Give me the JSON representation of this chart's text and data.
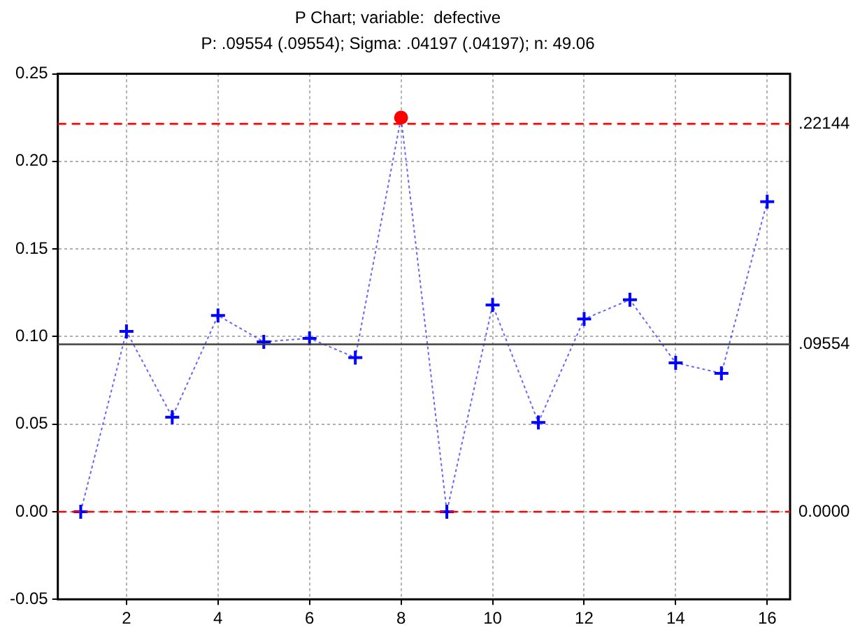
{
  "chart_data": {
    "type": "line",
    "title": "P Chart; variable:  defective",
    "subtitle": "P: .09554 (.09554); Sigma: .04197 (.04197); n: 49.06",
    "x": [
      1,
      2,
      3,
      4,
      5,
      6,
      7,
      8,
      9,
      10,
      11,
      12,
      13,
      14,
      15,
      16
    ],
    "series": [
      {
        "color": "#0000ff",
        "colors": [
          "#0000ff",
          "#0000ff",
          "#0000ff",
          "#0000ff",
          "#0000ff",
          "#0000ff",
          "#0000ff",
          "#ff0000",
          "#0000ff",
          "#0000ff",
          "#0000ff",
          "#0000ff",
          "#0000ff",
          "#0000ff",
          "#0000ff",
          "#0000ff"
        ],
        "values": [
          0,
          0.103,
          0.054,
          0.112,
          0.097,
          0.099,
          0.088,
          0.225,
          0,
          0.118,
          0.051,
          0.11,
          0.121,
          0.085,
          0.079,
          0.177
        ]
      }
    ],
    "xlim": [
      0.5,
      16.5
    ],
    "xticks": [
      2,
      4,
      6,
      8,
      10,
      12,
      14,
      16
    ],
    "ylim": [
      -0.05,
      0.25
    ],
    "yticks": [
      -0.05,
      {
        "value": 0,
        "label": "0.00"
      },
      0.05,
      {
        "value": 0.1,
        "label": "0.10"
      },
      0.15,
      {
        "value": 0.2,
        "label": "0.20"
      },
      0.25
    ],
    "ref_lines": [
      {
        "axis": "y",
        "value": 0.22144,
        "label": ".22144",
        "color": "#ff0000",
        "line_style": "dashed"
      },
      {
        "axis": "y",
        "value": 0.09554,
        "label": ".09554",
        "color": "#404040",
        "line_style": "solid"
      },
      {
        "axis": "y",
        "value": 0,
        "label": "0.0000",
        "color": "#ff0000",
        "line_style": "dashed"
      }
    ],
    "grid": true,
    "legend": false,
    "marker": "cross",
    "line_style": "dotted"
  }
}
